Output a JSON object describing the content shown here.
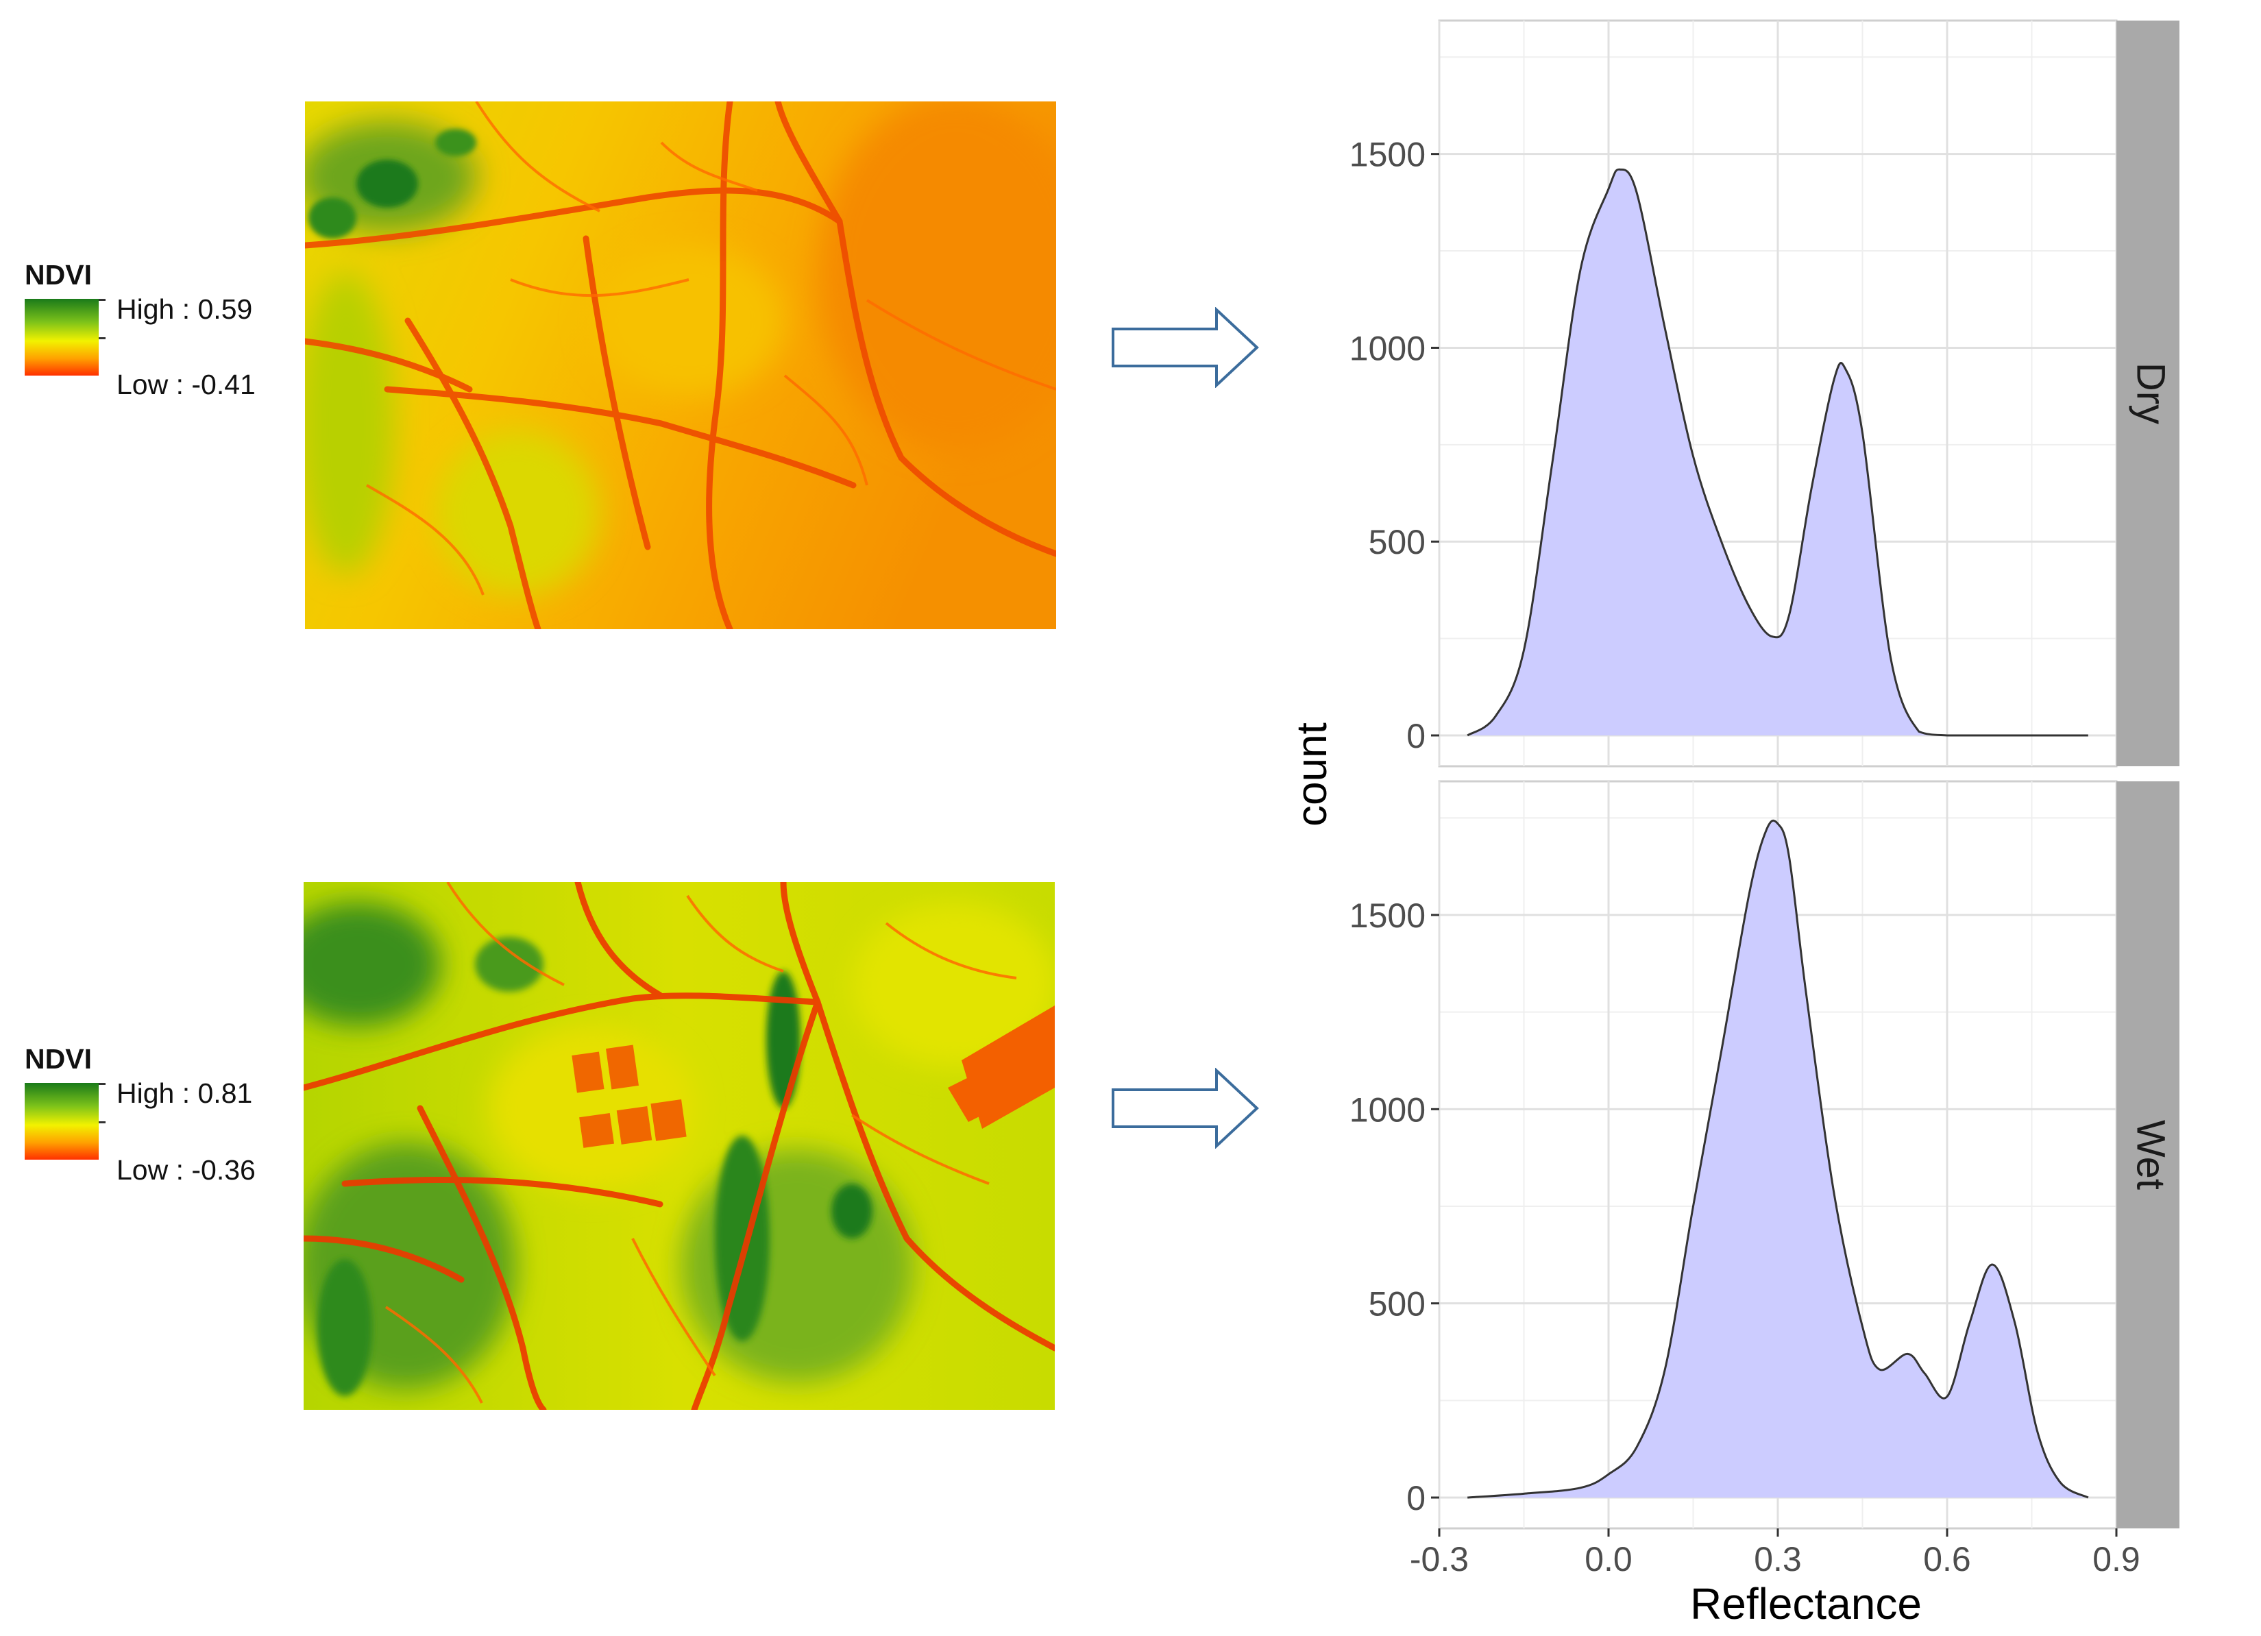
{
  "legends": [
    {
      "title": "NDVI",
      "high": "High : 0.59",
      "low": "Low : -0.41"
    },
    {
      "title": "NDVI",
      "high": "High : 0.81",
      "low": "Low : -0.36"
    }
  ],
  "colors": {
    "fill": "#ccccff",
    "line": "#333333",
    "strip": "#a9a9a9",
    "arrow": "#3b6c9c",
    "ndvi_high": "#1a7a1a",
    "ndvi_mid": "#f2f200",
    "ndvi_low": "#ff3000"
  },
  "chart_data": {
    "type": "area",
    "xlabel": "Reflectance",
    "ylabel": "count",
    "xlim": [
      -0.3,
      0.9
    ],
    "ylim": [
      0,
      1800
    ],
    "x_ticks": [
      "-0.3",
      "0.0",
      "0.3",
      "0.6",
      "0.9"
    ],
    "y_ticks": [
      "0",
      "500",
      "1000",
      "1500"
    ],
    "grid": true,
    "panels": [
      {
        "name": "Dry",
        "series": [
          {
            "x": [
              -0.25,
              -0.2,
              -0.15,
              -0.1,
              -0.05,
              0.0,
              0.02,
              0.05,
              0.1,
              0.15,
              0.2,
              0.25,
              0.29,
              0.32,
              0.36,
              0.4,
              0.42,
              0.45,
              0.5,
              0.55,
              0.6,
              0.65,
              0.7,
              0.75,
              0.8,
              0.85
            ],
            "y": [
              0,
              50,
              220,
              700,
              1200,
              1410,
              1460,
              1400,
              1050,
              720,
              500,
              330,
              255,
              310,
              640,
              920,
              945,
              780,
              200,
              10,
              0,
              0,
              0,
              0,
              0,
              0
            ]
          }
        ]
      },
      {
        "name": "Wet",
        "series": [
          {
            "x": [
              -0.25,
              -0.15,
              -0.05,
              0.0,
              0.05,
              0.1,
              0.15,
              0.2,
              0.25,
              0.28,
              0.3,
              0.32,
              0.35,
              0.4,
              0.45,
              0.48,
              0.53,
              0.56,
              0.6,
              0.64,
              0.68,
              0.72,
              0.76,
              0.8,
              0.85
            ],
            "y": [
              0,
              10,
              25,
              60,
              130,
              330,
              750,
              1150,
              1560,
              1720,
              1735,
              1650,
              1300,
              780,
              440,
              330,
              370,
              320,
              260,
              450,
              600,
              450,
              170,
              40,
              0
            ]
          }
        ]
      }
    ]
  }
}
